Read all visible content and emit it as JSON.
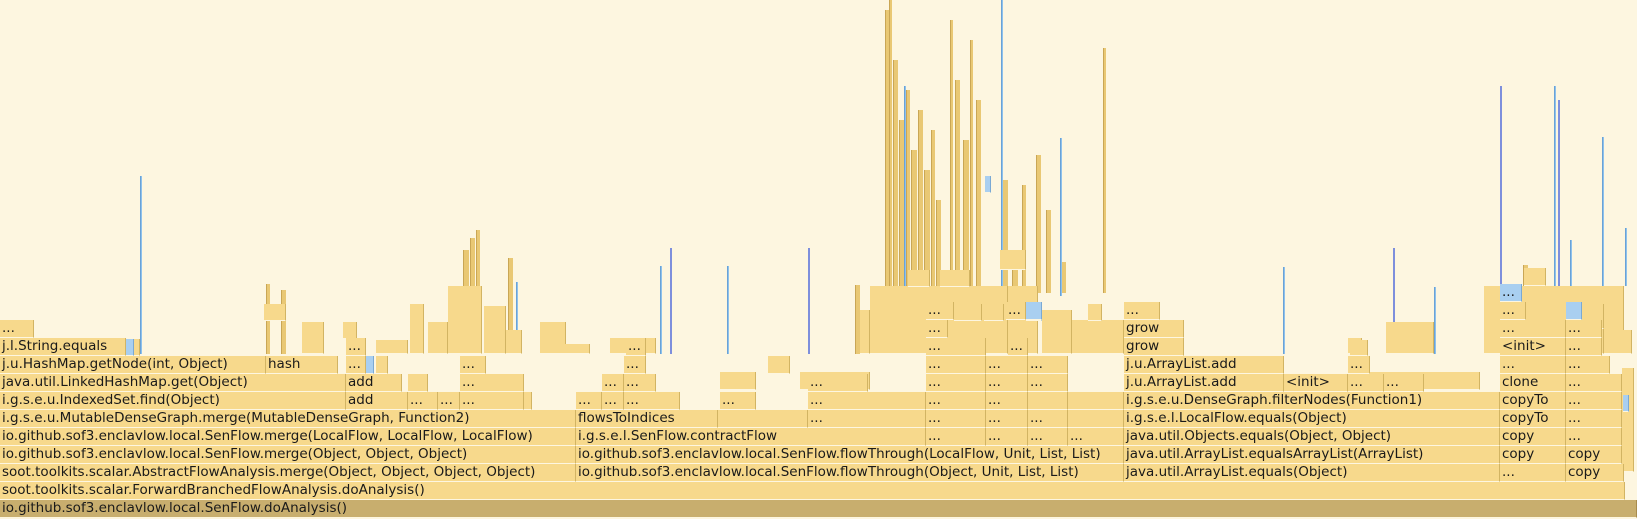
{
  "palette": {
    "frame": "#f7d98c",
    "frame_border": "#d2b463",
    "background": "#fdf6e0",
    "blue_frame": "#a9cff0",
    "selected": "#c8ae6e"
  },
  "frames": {
    "root": "io.github.sof3.enclavlow.local.SenFlow.doAnalysis()",
    "forward_branched": "soot.toolkits.scalar.ForwardBranchedFlowAnalysis.doAnalysis()",
    "af_merge": "soot.toolkits.scalar.AbstractFlowAnalysis.merge(Object, Object, Object, Object)",
    "sen_merge_obj": "io.github.sof3.enclavlow.local.SenFlow.merge(Object, Object, Object)",
    "sen_merge_lf": "io.github.sof3.enclavlow.local.SenFlow.merge(LocalFlow, LocalFlow, LocalFlow)",
    "mdg_merge": "i.g.s.e.u.MutableDenseGraph.merge(MutableDenseGraph, Function2)",
    "indexed_find": "i.g.s.e.u.IndexedSet.find(Object)",
    "lhm_get": "java.util.LinkedHashMap.get(Object)",
    "hm_getnode": "j.u.HashMap.getNode(int, Object)",
    "string_equals": "j.l.String.equals",
    "hash": "hash",
    "add": "add",
    "flowthrough_obj": "io.github.sof3.enclavlow.local.SenFlow.flowThrough(Object, Unit, List, List)",
    "flowthrough_lf": "io.github.sof3.enclavlow.local.SenFlow.flowThrough(LocalFlow, Unit, List, List)",
    "contract_flow": "i.g.s.e.l.SenFlow.contractFlow",
    "flows_to_indices": "flowsToIndices",
    "arraylist_equals": "java.util.ArrayList.equals(Object)",
    "arraylist_equals_al": "java.util.ArrayList.equalsArrayList(ArrayList)",
    "objects_equals": "java.util.Objects.equals(Object, Object)",
    "localflow_equals": "i.g.s.e.l.LocalFlow.equals(Object)",
    "filter_nodes": "i.g.s.e.u.DenseGraph.filterNodes(Function1)",
    "arraylist_add_1": "j.u.ArrayList.add",
    "arraylist_add_2": "j.u.ArrayList.add",
    "grow_1": "grow",
    "grow_2": "grow",
    "init_1": "<init>",
    "init_2": "<init>",
    "copy": "copy",
    "copy_to": "copyTo",
    "clone": "clone",
    "ellipsis": "..."
  }
}
